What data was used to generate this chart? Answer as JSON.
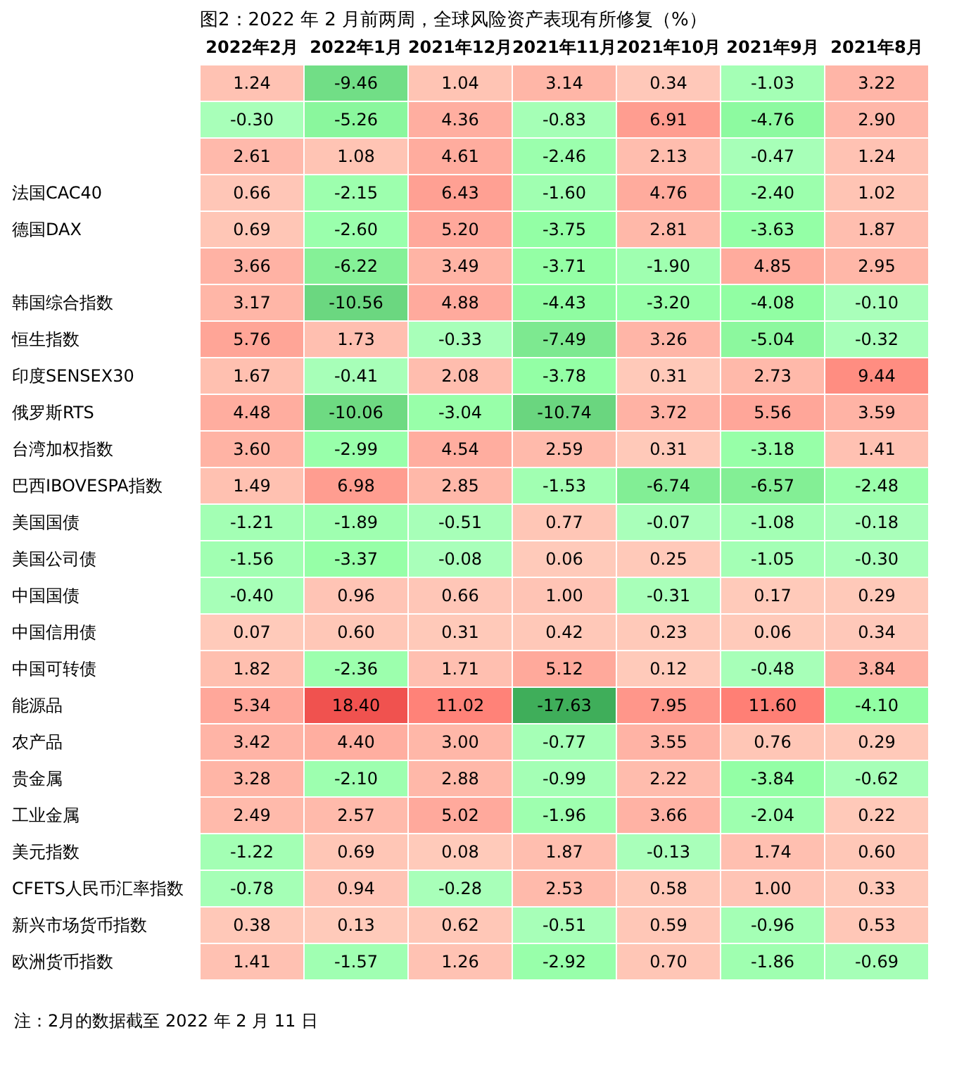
{
  "chart_data": {
    "type": "heatmap",
    "title": "图2：2022 年 2 月前两周，全球风险资产表现有所修复（%）",
    "categories": [
      "2022年2月",
      "2022年1月",
      "2021年12月",
      "2021年11月",
      "2021年10月",
      "2021年9月",
      "2021年8月"
    ],
    "y_categories": [
      null,
      null,
      null,
      "法国CAC40",
      "德国DAX",
      null,
      "韩国综合指数",
      "恒生指数",
      "印度SENSEX30",
      "俄罗斯RTS",
      "台湾加权指数",
      "巴西IBOVESPA指数",
      "美国国债",
      "美国公司债",
      "中国国债",
      "中国信用债",
      "中国可转债",
      "能源品",
      "农产品",
      "贵金属",
      "工业金属",
      "美元指数",
      "CFETS人民币汇率指数",
      "新兴市场货币指数",
      "欧洲货币指数"
    ],
    "cells": [
      [
        1.24,
        -9.46,
        1.04,
        3.14,
        0.34,
        -1.03,
        3.22
      ],
      [
        -0.3,
        -5.26,
        4.36,
        -0.83,
        6.91,
        -4.76,
        2.9
      ],
      [
        2.61,
        1.08,
        4.61,
        -2.46,
        2.13,
        -0.47,
        1.24
      ],
      [
        0.66,
        -2.15,
        6.43,
        -1.6,
        4.76,
        -2.4,
        1.02
      ],
      [
        0.69,
        -2.6,
        5.2,
        -3.75,
        2.81,
        -3.63,
        1.87
      ],
      [
        3.66,
        -6.22,
        3.49,
        -3.71,
        -1.9,
        4.85,
        2.95
      ],
      [
        3.17,
        -10.56,
        4.88,
        -4.43,
        -3.2,
        -4.08,
        -0.1
      ],
      [
        5.76,
        1.73,
        -0.33,
        -7.49,
        3.26,
        -5.04,
        -0.32
      ],
      [
        1.67,
        -0.41,
        2.08,
        -3.78,
        0.31,
        2.73,
        9.44
      ],
      [
        4.48,
        -10.06,
        -3.04,
        -10.74,
        3.72,
        5.56,
        3.59
      ],
      [
        3.6,
        -2.99,
        4.54,
        2.59,
        0.31,
        -3.18,
        1.41
      ],
      [
        1.49,
        6.98,
        2.85,
        -1.53,
        -6.74,
        -6.57,
        -2.48
      ],
      [
        -1.21,
        -1.89,
        -0.51,
        0.77,
        -0.07,
        -1.08,
        -0.18
      ],
      [
        -1.56,
        -3.37,
        -0.08,
        0.06,
        0.25,
        -1.05,
        -0.3
      ],
      [
        -0.4,
        0.96,
        0.66,
        1.0,
        -0.31,
        0.17,
        0.29
      ],
      [
        0.07,
        0.6,
        0.31,
        0.42,
        0.23,
        0.06,
        0.34
      ],
      [
        1.82,
        -2.36,
        1.71,
        5.12,
        0.12,
        -0.48,
        3.84
      ],
      [
        5.34,
        18.4,
        11.02,
        -17.63,
        7.95,
        11.6,
        -4.1
      ],
      [
        3.42,
        4.4,
        3.0,
        -0.77,
        3.55,
        0.76,
        0.29
      ],
      [
        3.28,
        -2.1,
        2.88,
        -0.99,
        2.22,
        -3.84,
        -0.62
      ],
      [
        2.49,
        2.57,
        5.02,
        -1.96,
        3.66,
        -2.04,
        0.22
      ],
      [
        -1.22,
        0.69,
        0.08,
        1.87,
        -0.13,
        1.74,
        0.6
      ],
      [
        -0.78,
        0.94,
        -0.28,
        2.53,
        0.58,
        1.0,
        0.33
      ],
      [
        0.38,
        0.13,
        0.62,
        -0.51,
        0.59,
        -0.96,
        0.53
      ],
      [
        1.41,
        -1.57,
        1.26,
        -2.92,
        0.7,
        -1.86,
        -0.69
      ]
    ],
    "cell_labels": [
      [
        "1.24",
        "-9.46",
        "1.04",
        "3.14",
        "0.34",
        "-1.03",
        "3.22"
      ],
      [
        "-0.30",
        "-5.26",
        "4.36",
        "-0.83",
        "6.91",
        "-4.76",
        "2.90"
      ],
      [
        "2.61",
        "1.08",
        "4.61",
        "-2.46",
        "2.13",
        "-0.47",
        "1.24"
      ],
      [
        "0.66",
        "-2.15",
        "6.43",
        "-1.60",
        "4.76",
        "-2.40",
        "1.02"
      ],
      [
        "0.69",
        "-2.60",
        "5.20",
        "-3.75",
        "2.81",
        "-3.63",
        "1.87"
      ],
      [
        "3.66",
        "-6.22",
        "3.49",
        "-3.71",
        "-1.90",
        "4.85",
        "2.95"
      ],
      [
        "3.17",
        "-10.56",
        "4.88",
        "-4.43",
        "-3.20",
        "-4.08",
        "-0.10"
      ],
      [
        "5.76",
        "1.73",
        "-0.33",
        "-7.49",
        "3.26",
        "-5.04",
        "-0.32"
      ],
      [
        "1.67",
        "-0.41",
        "2.08",
        "-3.78",
        "0.31",
        "2.73",
        "9.44"
      ],
      [
        "4.48",
        "-10.06",
        "-3.04",
        "-10.74",
        "3.72",
        "5.56",
        "3.59"
      ],
      [
        "3.60",
        "-2.99",
        "4.54",
        "2.59",
        "0.31",
        "-3.18",
        "1.41"
      ],
      [
        "1.49",
        "6.98",
        "2.85",
        "-1.53",
        "-6.74",
        "-6.57",
        "-2.48"
      ],
      [
        "-1.21",
        "-1.89",
        "-0.51",
        "0.77",
        "-0.07",
        "-1.08",
        "-0.18"
      ],
      [
        "-1.56",
        "-3.37",
        "-0.08",
        "0.06",
        "0.25",
        "-1.05",
        "-0.30"
      ],
      [
        "-0.40",
        "0.96",
        "0.66",
        "1.00",
        "-0.31",
        "0.17",
        "0.29"
      ],
      [
        "0.07",
        "0.60",
        "0.31",
        "0.42",
        "0.23",
        "0.06",
        "0.34"
      ],
      [
        "1.82",
        "-2.36",
        "1.71",
        "5.12",
        "0.12",
        "-0.48",
        "3.84"
      ],
      [
        "5.34",
        "18.40",
        "11.02",
        "-17.63",
        "7.95",
        "11.60",
        "-4.10"
      ],
      [
        "3.42",
        "4.40",
        "3.00",
        "-0.77",
        "3.55",
        "0.76",
        "0.29"
      ],
      [
        "3.28",
        "-2.10",
        "2.88",
        "-0.99",
        "2.22",
        "-3.84",
        "-0.62"
      ],
      [
        "2.49",
        "2.57",
        "5.02",
        "-1.96",
        "3.66",
        "-2.04",
        "0.22"
      ],
      [
        "-1.22",
        "0.69",
        "0.08",
        "1.87",
        "-0.13",
        "1.74",
        "0.60"
      ],
      [
        "-0.78",
        "0.94",
        "-0.28",
        "2.53",
        "0.58",
        "1.00",
        "0.33"
      ],
      [
        "0.38",
        "0.13",
        "0.62",
        "-0.51",
        "0.59",
        "-0.96",
        "0.53"
      ],
      [
        "1.41",
        "-1.57",
        "1.26",
        "-2.92",
        "0.70",
        "-1.86",
        "-0.69"
      ]
    ],
    "annotations": [
      "注：2月的数据截至 2022 年 2 月 11 日"
    ]
  }
}
